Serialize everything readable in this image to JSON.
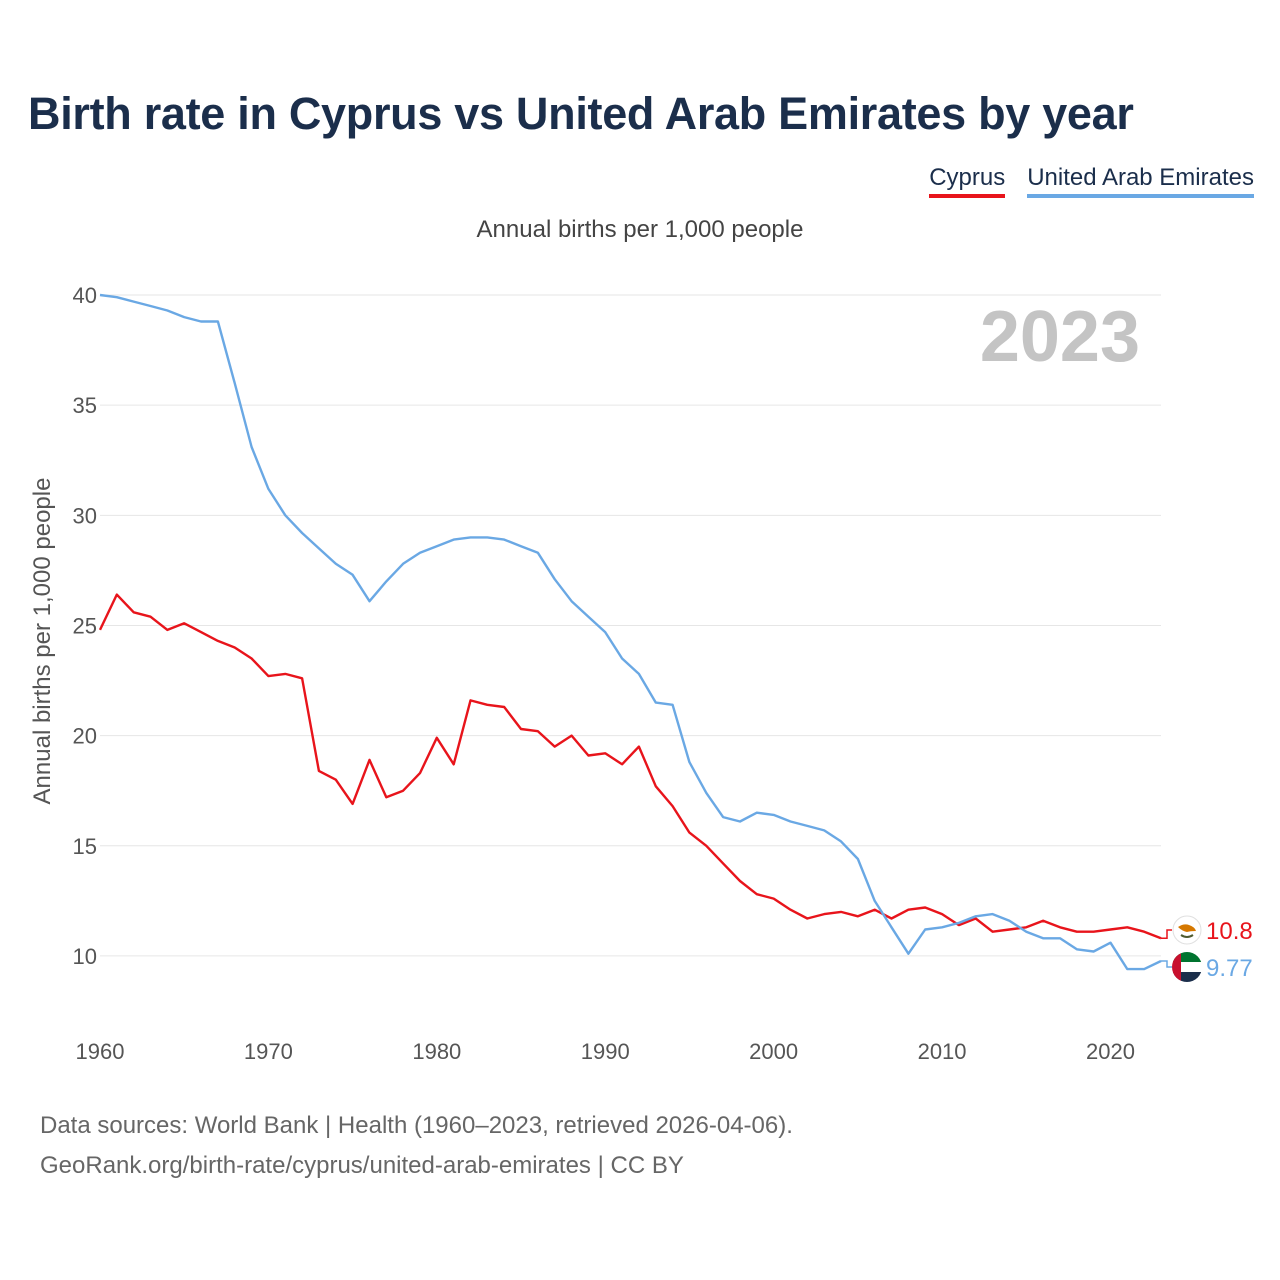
{
  "header": {
    "title": "Birth rate in Cyprus vs United Arab Emirates by year",
    "subtitle": "Annual births per 1,000 people"
  },
  "footer": {
    "line1": "Data sources: World Bank | Health (1960–2023, retrieved 2026-04-06).",
    "line2": "GeoRank.org/birth-rate/cyprus/united-arab-emirates | CC BY"
  },
  "chart_data": {
    "type": "line",
    "title": "Birth rate in Cyprus vs United Arab Emirates by year",
    "subtitle": "Annual births per 1,000 people",
    "xlabel": "",
    "ylabel": "Annual births per 1,000 people",
    "year_label": "2023",
    "xlim": [
      1960,
      2023
    ],
    "ylim": [
      7.5,
      41
    ],
    "x_ticks": [
      1960,
      1970,
      1980,
      1990,
      2000,
      2010,
      2020
    ],
    "y_ticks": [
      10,
      15,
      20,
      25,
      30,
      35,
      40
    ],
    "grid": true,
    "legend_position": "top-right",
    "x": [
      1960,
      1961,
      1962,
      1963,
      1964,
      1965,
      1966,
      1967,
      1968,
      1969,
      1970,
      1971,
      1972,
      1973,
      1974,
      1975,
      1976,
      1977,
      1978,
      1979,
      1980,
      1981,
      1982,
      1983,
      1984,
      1985,
      1986,
      1987,
      1988,
      1989,
      1990,
      1991,
      1992,
      1993,
      1994,
      1995,
      1996,
      1997,
      1998,
      1999,
      2000,
      2001,
      2002,
      2003,
      2004,
      2005,
      2006,
      2007,
      2008,
      2009,
      2010,
      2011,
      2012,
      2013,
      2014,
      2015,
      2016,
      2017,
      2018,
      2019,
      2020,
      2021,
      2022,
      2023
    ],
    "series": [
      {
        "name": "Cyprus",
        "color": "#e8141b",
        "end_label": "10.8",
        "values": [
          24.8,
          26.4,
          25.6,
          25.4,
          24.8,
          25.1,
          24.7,
          24.3,
          24.0,
          23.5,
          22.7,
          22.8,
          22.6,
          18.4,
          18.0,
          16.9,
          18.9,
          17.2,
          17.5,
          18.3,
          19.9,
          18.7,
          21.6,
          21.4,
          21.3,
          20.3,
          20.2,
          19.5,
          20.0,
          19.1,
          19.2,
          18.7,
          19.5,
          17.7,
          16.8,
          15.6,
          15.0,
          14.2,
          13.4,
          12.8,
          12.6,
          12.1,
          11.7,
          11.9,
          12.0,
          11.8,
          12.1,
          11.7,
          12.1,
          12.2,
          11.9,
          11.4,
          11.7,
          11.1,
          11.2,
          11.3,
          11.6,
          11.3,
          11.1,
          11.1,
          11.2,
          11.3,
          11.1,
          10.8
        ]
      },
      {
        "name": "United Arab Emirates",
        "color": "#6aa8e4",
        "end_label": "9.77",
        "values": [
          40.0,
          39.9,
          39.7,
          39.5,
          39.3,
          39.0,
          38.8,
          38.8,
          36.0,
          33.1,
          31.2,
          30.0,
          29.2,
          28.5,
          27.8,
          27.3,
          26.1,
          27.0,
          27.8,
          28.3,
          28.6,
          28.9,
          29.0,
          29.0,
          28.9,
          28.6,
          28.3,
          27.1,
          26.1,
          25.4,
          24.7,
          23.5,
          22.8,
          21.5,
          21.4,
          18.8,
          17.4,
          16.3,
          16.1,
          16.5,
          16.4,
          16.1,
          15.9,
          15.7,
          15.2,
          14.4,
          12.5,
          11.3,
          10.1,
          11.2,
          11.3,
          11.5,
          11.8,
          11.9,
          11.6,
          11.1,
          10.8,
          10.8,
          10.3,
          10.2,
          10.6,
          9.4,
          9.4,
          9.77
        ]
      }
    ]
  }
}
